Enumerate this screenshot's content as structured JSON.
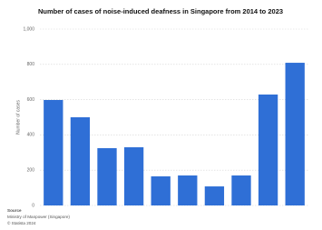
{
  "chart_data": {
    "type": "bar",
    "title": "Number of cases of noise-induced deafness in Singapore from 2014 to 2023",
    "y_label": "Number of cases",
    "categories": [
      null,
      null,
      null,
      null,
      null,
      null,
      null,
      null,
      null,
      null
    ],
    "values": [
      598,
      500,
      325,
      330,
      165,
      170,
      108,
      170,
      629,
      809
    ],
    "color": "#2f6fd6",
    "ylim": [
      0,
      1000
    ],
    "yticks": [
      0,
      200,
      400,
      600,
      800,
      {
        "value": 1000,
        "label": "1,000"
      }
    ],
    "grid": true,
    "source": [
      "Source",
      "Ministry of Manpower (Singapore)",
      "© Statista 2024"
    ]
  }
}
